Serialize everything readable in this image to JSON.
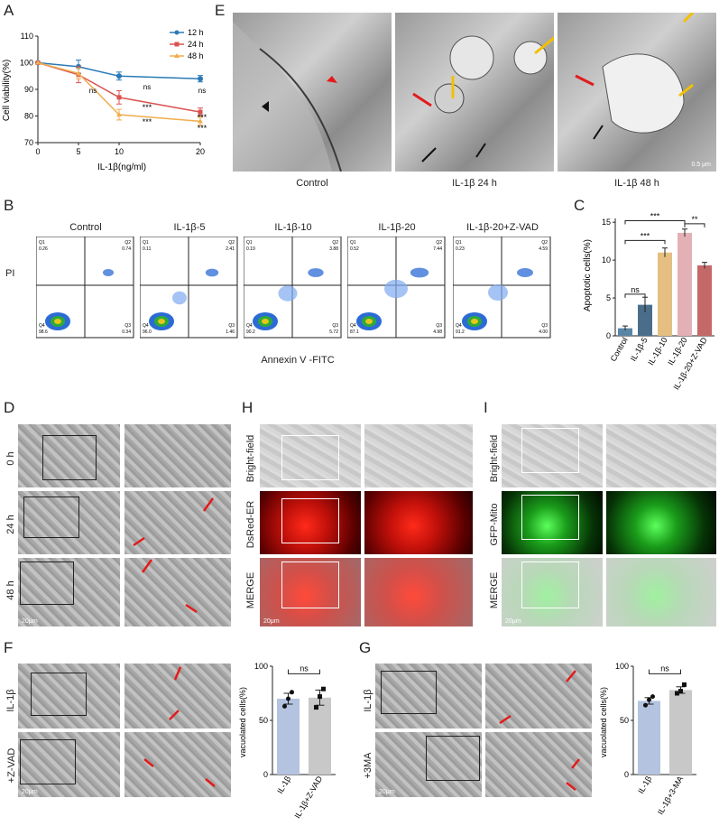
{
  "panels": {
    "A": "A",
    "B": "B",
    "C": "C",
    "D": "D",
    "E": "E",
    "F": "F",
    "G": "G",
    "H": "H",
    "I": "I"
  },
  "panelA": {
    "ylabel": "Cell viability(%)",
    "xlabel": "IL-1β(ng/ml)",
    "legend": [
      "12 h",
      "24 h",
      "48 h"
    ],
    "annot": {
      "ns1": "ns",
      "ns2": "ns",
      "ns3": "ns",
      "ns4": "ns",
      "s1": "***",
      "s2": "***",
      "s3": "***",
      "s4": "***"
    }
  },
  "chart_data": [
    {
      "type": "line",
      "x": [
        0,
        5,
        10,
        20
      ],
      "series": [
        {
          "name": "12 h",
          "values": [
            100,
            98.5,
            95,
            94
          ],
          "err": [
            0,
            2.5,
            1.5,
            1.2
          ],
          "color": "#2a7ab5"
        },
        {
          "name": "24 h",
          "values": [
            100,
            95.5,
            87,
            81.5
          ],
          "err": [
            0,
            3,
            2.5,
            1.5
          ],
          "color": "#d9534f"
        },
        {
          "name": "48 h",
          "values": [
            100,
            96,
            80.5,
            78
          ],
          "err": [
            0,
            2,
            2,
            1.5
          ],
          "color": "#f0ad4e"
        }
      ],
      "xlabel": "IL-1β(ng/ml)",
      "ylabel": "Cell viability(%)",
      "xticks": [
        0,
        5,
        10,
        20
      ],
      "yticks": [
        70,
        80,
        90,
        100,
        110
      ],
      "ylim": [
        70,
        110
      ],
      "xlim": [
        0,
        20
      ]
    },
    {
      "type": "bar",
      "categories": [
        "Control",
        "IL-1β-5",
        "IL-1β-10",
        "IL-1β-20",
        "IL-1β-20+Z-VAD"
      ],
      "values": [
        1.0,
        4.1,
        11.0,
        13.6,
        9.3
      ],
      "err": [
        0.3,
        1.0,
        0.6,
        0.5,
        0.4
      ],
      "colors": [
        "#5a86a5",
        "#4a6e8a",
        "#e5bf82",
        "#e3b1b5",
        "#c46868"
      ],
      "ylabel": "Apoptotic cells(%)",
      "yticks": [
        0,
        5,
        10,
        15
      ],
      "ylim": [
        0,
        15.5
      ],
      "annotations": [
        "ns",
        "***",
        "***",
        "**"
      ]
    },
    {
      "type": "bar",
      "categories": [
        "IL-1β",
        "IL-1β+Z-VAD"
      ],
      "values": [
        70,
        71
      ],
      "err": [
        5,
        7
      ],
      "points": [
        [
          63,
          70,
          76
        ],
        [
          62,
          72,
          79
        ]
      ],
      "colors": [
        "#b4c3e0",
        "#c8c8c8"
      ],
      "ylabel": "vacuolated cells(%)",
      "yticks": [
        0,
        50,
        100
      ],
      "ylim": [
        0,
        100
      ],
      "annotations": [
        "ns"
      ]
    },
    {
      "type": "bar",
      "categories": [
        "IL-1β",
        "IL-1β+3-MA"
      ],
      "values": [
        68,
        78
      ],
      "err": [
        3,
        3
      ],
      "points": [
        [
          64,
          69,
          72
        ],
        [
          75,
          77,
          83
        ]
      ],
      "colors": [
        "#b4c3e0",
        "#c8c8c8"
      ],
      "ylabel": "vacuolated cells(%)",
      "yticks": [
        0,
        50,
        100
      ],
      "ylim": [
        0,
        100
      ],
      "annotations": [
        "ns"
      ]
    }
  ],
  "panelE": {
    "captions": [
      "Control",
      "IL-1β 24 h",
      "IL-1β 48 h"
    ],
    "scale": "0.5 μm"
  },
  "panelB": {
    "titles": [
      "Control",
      "IL-1β-5",
      "IL-1β-10",
      "IL-1β-20",
      "IL-1β-20+Z-VAD"
    ],
    "ylabel": "PI",
    "xlabel": "Annexin V -FITC",
    "quads": [
      {
        "q1": "Q1",
        "q1v": "0.26",
        "q2": "Q2",
        "q2v": "0.74",
        "q3": "Q3",
        "q3v": "0.34",
        "q4": "Q4",
        "q4v": "98.6"
      },
      {
        "q1": "Q1",
        "q1v": "0.11",
        "q2": "Q2",
        "q2v": "2.41",
        "q3": "Q3",
        "q3v": "1.46",
        "q4": "Q4",
        "q4v": "96.0"
      },
      {
        "q1": "Q1",
        "q1v": "0.19",
        "q2": "Q2",
        "q2v": "3.88",
        "q3": "Q3",
        "q3v": "5.72",
        "q4": "Q4",
        "q4v": "90.2"
      },
      {
        "q1": "Q1",
        "q1v": "0.52",
        "q2": "Q2",
        "q2v": "7.44",
        "q3": "Q3",
        "q3v": "4.98",
        "q4": "Q4",
        "q4v": "87.1"
      },
      {
        "q1": "Q1",
        "q1v": "0.23",
        "q2": "Q2",
        "q2v": "4.59",
        "q3": "Q3",
        "q3v": "4.00",
        "q4": "Q4",
        "q4v": "91.2"
      }
    ]
  },
  "panelD": {
    "rows": [
      "0 h",
      "24 h",
      "48 h"
    ],
    "scale": "20μm"
  },
  "panelH": {
    "rows": [
      "Bright-field",
      "DsRed-ER",
      "MERGE"
    ],
    "scale": "20μm"
  },
  "panelI": {
    "rows": [
      "Bright-field",
      "GFP-Mito",
      "MERGE"
    ],
    "scale": "20μm"
  },
  "panelF": {
    "rows": [
      "IL-1β",
      "+Z-VAD"
    ],
    "scale": "20μm"
  },
  "panelG": {
    "rows": [
      "IL-1β",
      "+3MA"
    ],
    "scale": "20μm"
  }
}
